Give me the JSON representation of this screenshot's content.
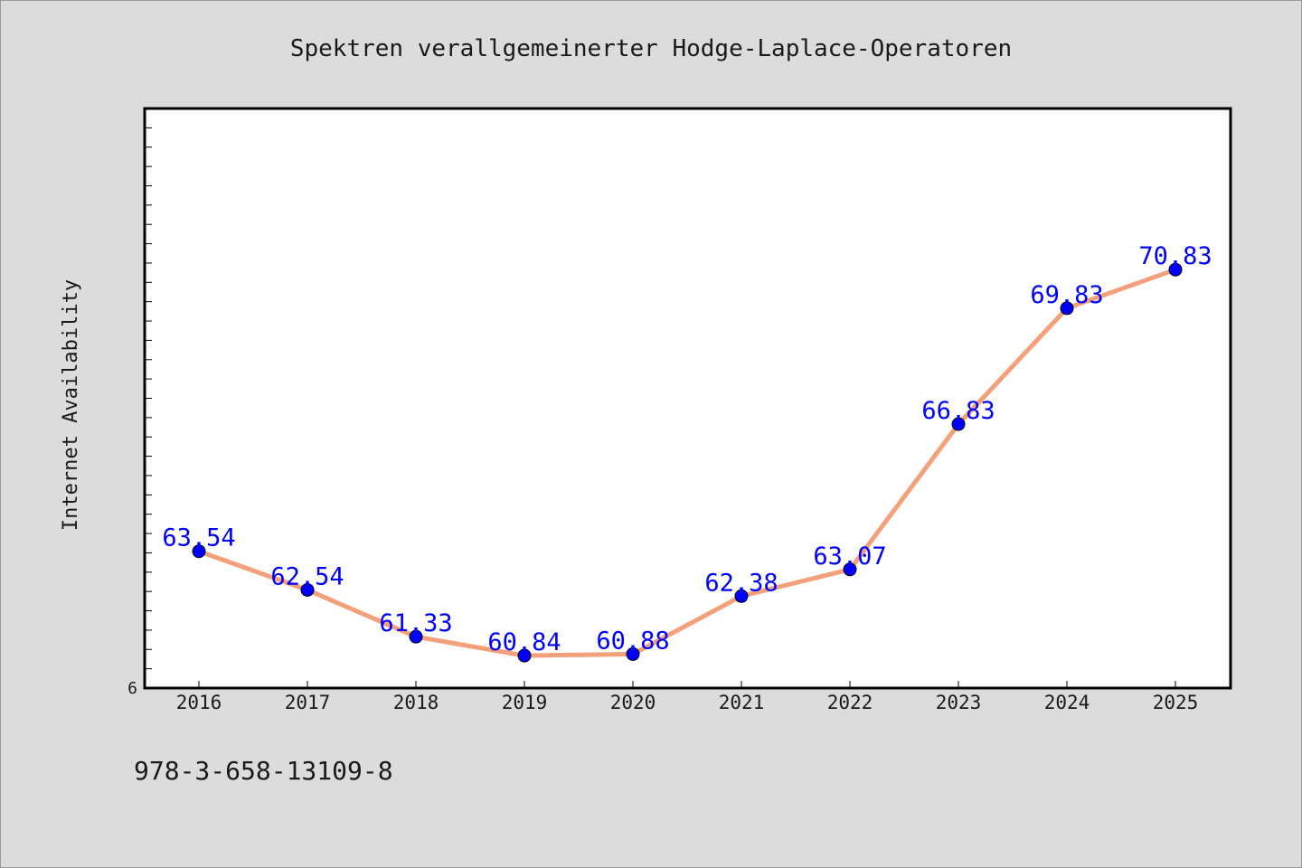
{
  "chart_data": {
    "type": "line",
    "title": "Spektren verallgemeinerter Hodge-Laplace-Operatoren",
    "ylabel": "Internet Availability",
    "xlabel": "",
    "x": [
      "2016",
      "2017",
      "2018",
      "2019",
      "2020",
      "2021",
      "2022",
      "2023",
      "2024",
      "2025"
    ],
    "series": [
      {
        "values": [
          63.54,
          62.54,
          61.33,
          60.84,
          60.88,
          62.38,
          63.07,
          66.83,
          69.83,
          70.83
        ],
        "labels": [
          "63.54",
          "62.54",
          "61.33",
          "60.84",
          "60.88",
          "62.38",
          "63.07",
          "66.83",
          "69.83",
          "70.83"
        ]
      }
    ],
    "ylim": [
      60,
      75
    ],
    "y_tick_label": "6",
    "grid": false,
    "colors": {
      "line": "#f4a07a",
      "marker": "#0000ff",
      "label": "#0000ff"
    }
  },
  "footer": {
    "isbn": "978-3-658-13109-8"
  }
}
